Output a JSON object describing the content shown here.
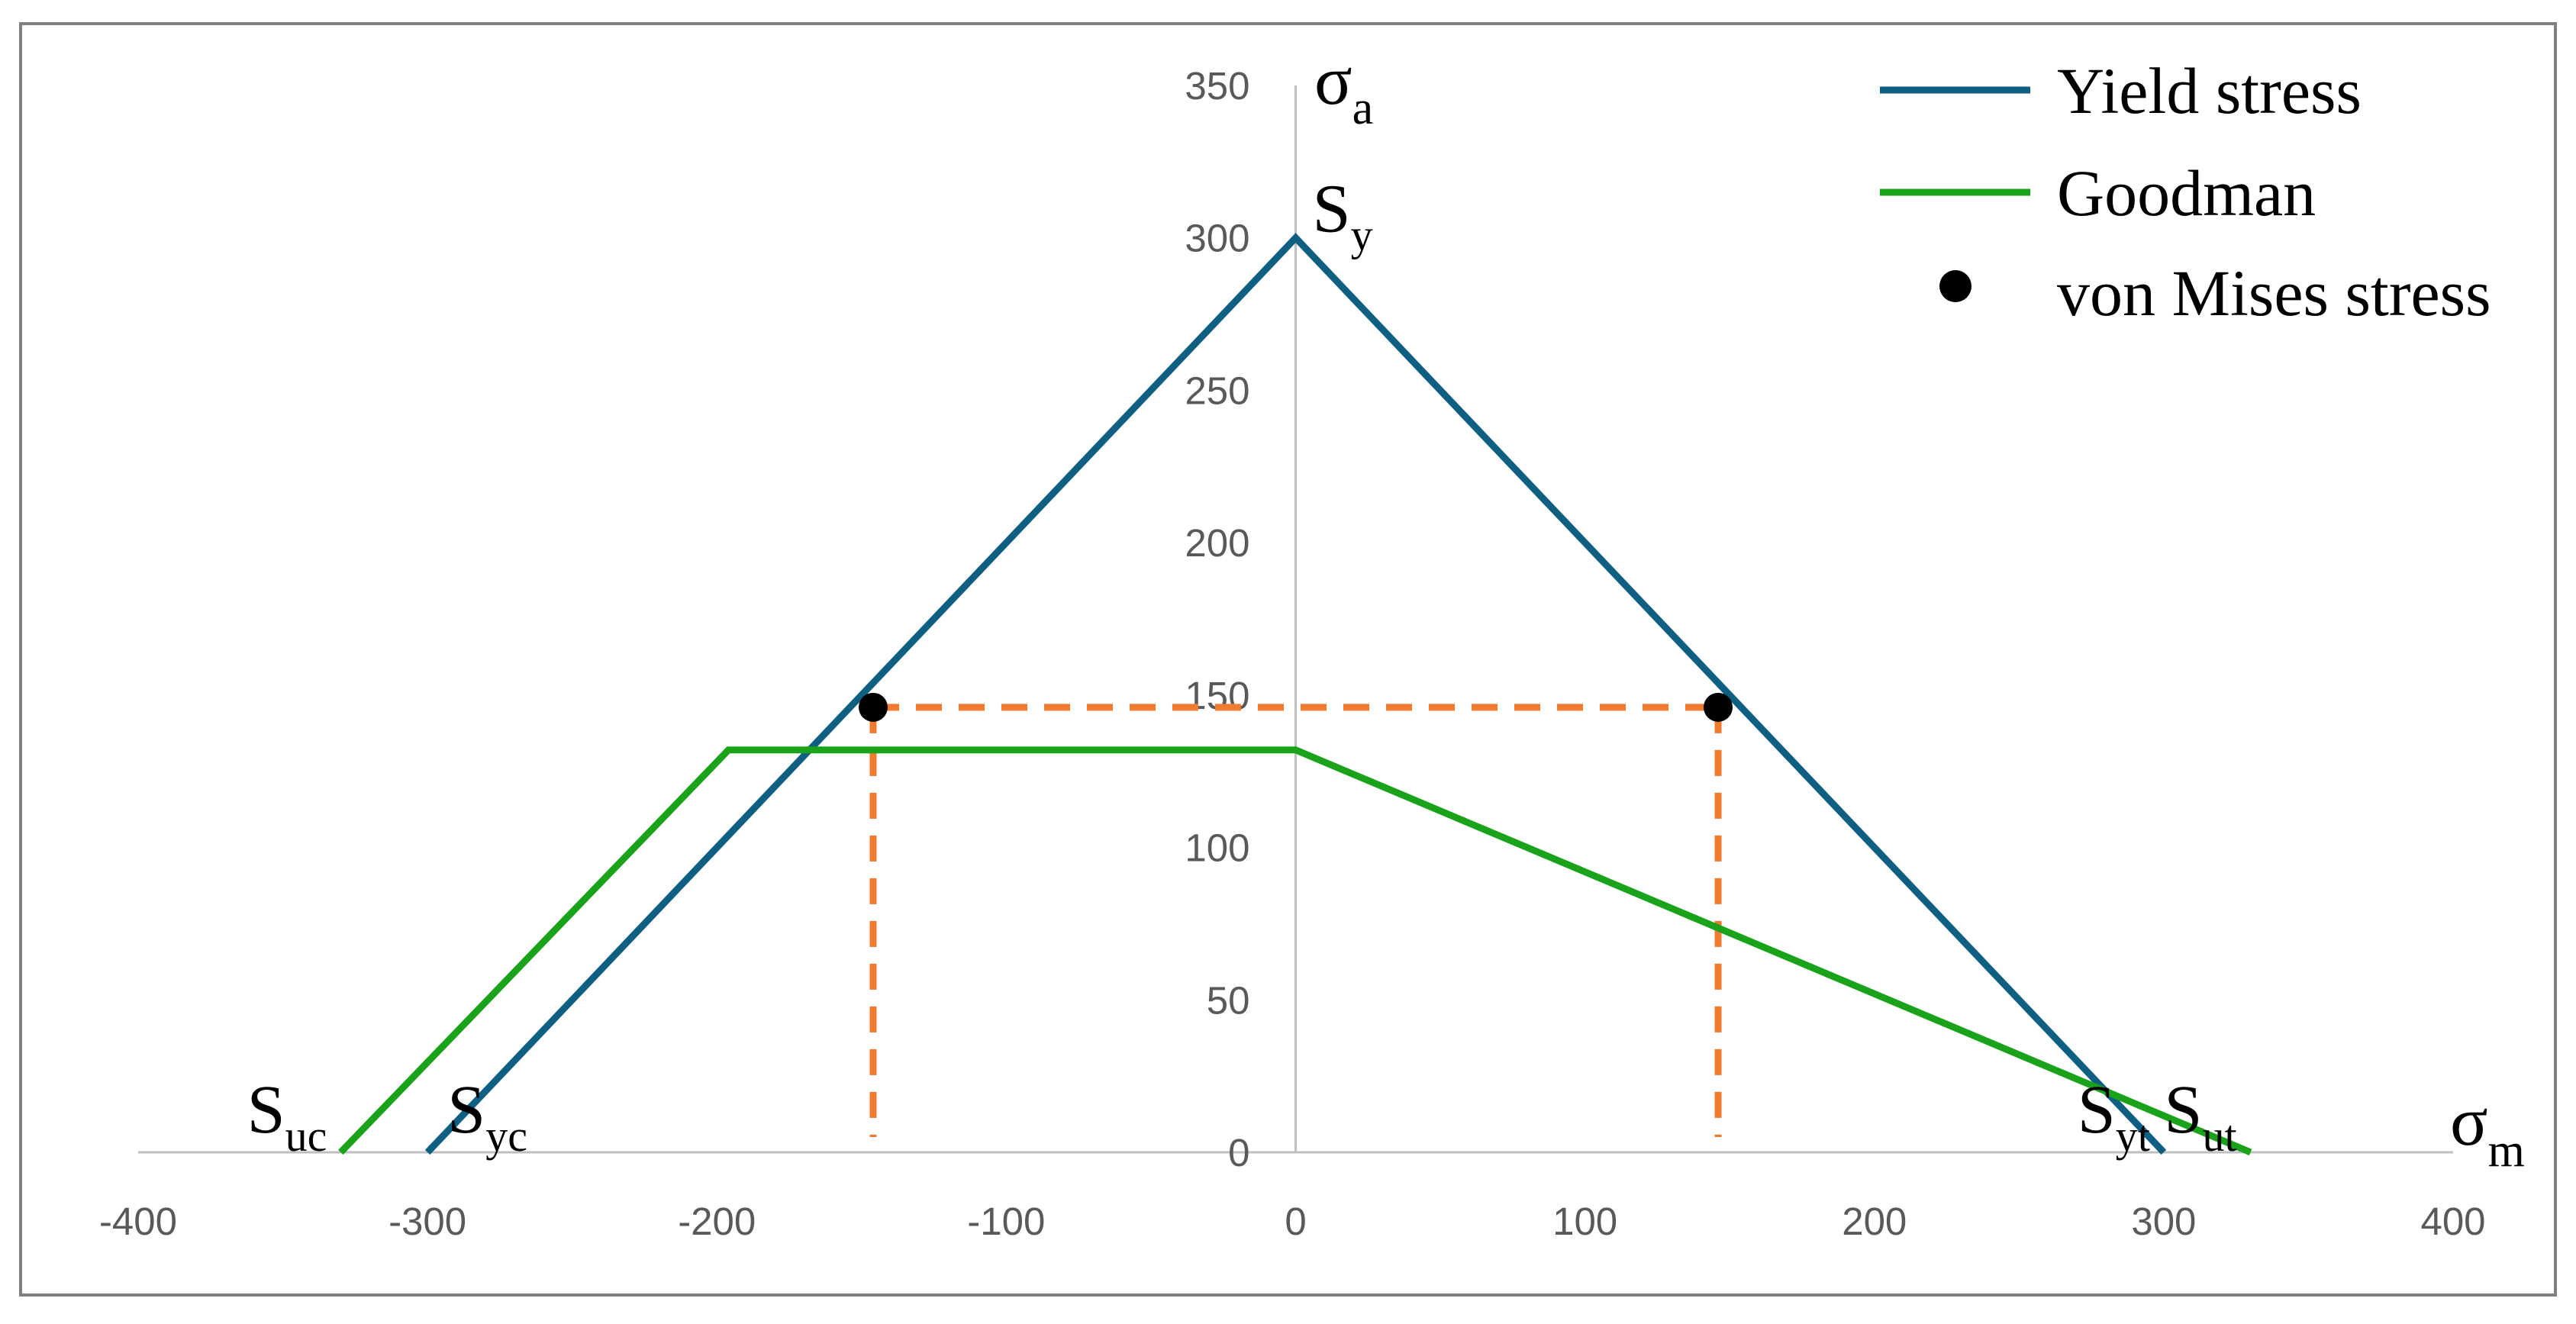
{
  "chart_data": {
    "type": "line",
    "title": "",
    "xlabel": "σ",
    "xlabel_sub": "m",
    "ylabel": "σ",
    "ylabel_sub": "a",
    "xlim": [
      -400,
      400
    ],
    "ylim": [
      0,
      350
    ],
    "x_ticks": [
      "-400",
      "-300",
      "-200",
      "-100",
      "0",
      "100",
      "200",
      "300",
      "400"
    ],
    "y_ticks": [
      "0",
      "50",
      "100",
      "150",
      "200",
      "250",
      "300",
      "350"
    ],
    "grid": false,
    "legend_position": "top-right",
    "series": [
      {
        "name": "Yield stress",
        "style": "line",
        "color": "#0f5f82",
        "points": [
          [
            -300,
            0
          ],
          [
            0,
            300
          ],
          [
            300,
            0
          ]
        ]
      },
      {
        "name": "Goodman",
        "style": "line",
        "color": "#1aa31a",
        "points": [
          [
            -330,
            0
          ],
          [
            -196,
            132
          ],
          [
            0,
            132
          ],
          [
            330,
            0
          ]
        ]
      },
      {
        "name": "von Mises stress",
        "style": "markers",
        "color": "#000000",
        "points": [
          [
            -146,
            146
          ],
          [
            146,
            146
          ]
        ]
      }
    ],
    "guides": {
      "color": "#f07a30",
      "style": "dashed",
      "segments": [
        [
          [
            -146,
            146
          ],
          [
            146,
            146
          ]
        ],
        [
          [
            -146,
            146
          ],
          [
            -146,
            5
          ]
        ],
        [
          [
            146,
            146
          ],
          [
            146,
            5
          ]
        ]
      ]
    },
    "annotations": [
      {
        "text": "S",
        "sub": "y",
        "x": 0,
        "y": 300,
        "anchor": "start"
      },
      {
        "text": "S",
        "sub": "uc",
        "x": -330,
        "y": 0,
        "anchor": "end"
      },
      {
        "text": "S",
        "sub": "yc",
        "x": -300,
        "y": 0,
        "anchor": "start"
      },
      {
        "text": "S",
        "sub": "yt",
        "x": 300,
        "y": 0,
        "anchor": "end"
      },
      {
        "text": "S",
        "sub": "ut",
        "x": 330,
        "y": 0,
        "anchor": "end"
      }
    ]
  }
}
